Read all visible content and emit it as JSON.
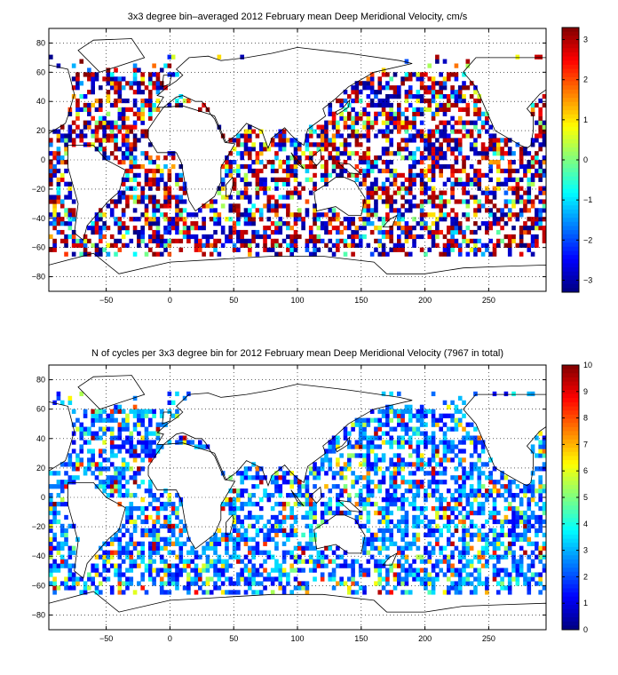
{
  "panels": [
    {
      "title": "3x3 degree bin–averaged 2012 February mean Deep Meridional Velocity, cm/s",
      "colorbar_ticks": [
        "3",
        "2",
        "1",
        "0",
        "−1",
        "−2",
        "−3"
      ],
      "colorbar_values": [
        3,
        2,
        1,
        0,
        -1,
        -2,
        -3
      ],
      "clim": [
        -3.3,
        3.3
      ]
    },
    {
      "title": "N of cycles per 3x3 degree bin for 2012 February mean Deep Meridional Velocity (7967 in total)",
      "colorbar_ticks": [
        "10",
        "9",
        "8",
        "7",
        "6",
        "5",
        "4",
        "3",
        "2",
        "1",
        "0"
      ],
      "colorbar_values": [
        10,
        9,
        8,
        7,
        6,
        5,
        4,
        3,
        2,
        1,
        0
      ],
      "clim": [
        0,
        10
      ]
    }
  ],
  "chart_data": [
    {
      "type": "heatmap",
      "title": "3x3 degree bin–averaged 2012 February mean Deep Meridional Velocity, cm/s",
      "xlabel": "",
      "ylabel": "",
      "xlim": [
        -95,
        295
      ],
      "ylim": [
        -90,
        90
      ],
      "xticks": [
        -50,
        0,
        50,
        100,
        150,
        200,
        250
      ],
      "yticks": [
        80,
        60,
        40,
        20,
        0,
        -20,
        -40,
        -60,
        -80
      ],
      "grid": true,
      "colormap": "jet",
      "colorbar_range": [
        -3.3,
        3.3
      ],
      "bin_size_deg": 3
    },
    {
      "type": "heatmap",
      "title": "N of cycles per 3x3 degree bin for 2012 February mean Deep Meridional Velocity (7967 in total)",
      "xlabel": "",
      "ylabel": "",
      "xlim": [
        -95,
        295
      ],
      "ylim": [
        -90,
        90
      ],
      "xticks": [
        -50,
        0,
        50,
        100,
        150,
        200,
        250
      ],
      "yticks": [
        80,
        60,
        40,
        20,
        0,
        -20,
        -40,
        -60,
        -80
      ],
      "grid": true,
      "colormap": "jet",
      "colorbar_range": [
        0,
        10
      ],
      "total_cycles": 7967,
      "bin_size_deg": 3
    }
  ]
}
